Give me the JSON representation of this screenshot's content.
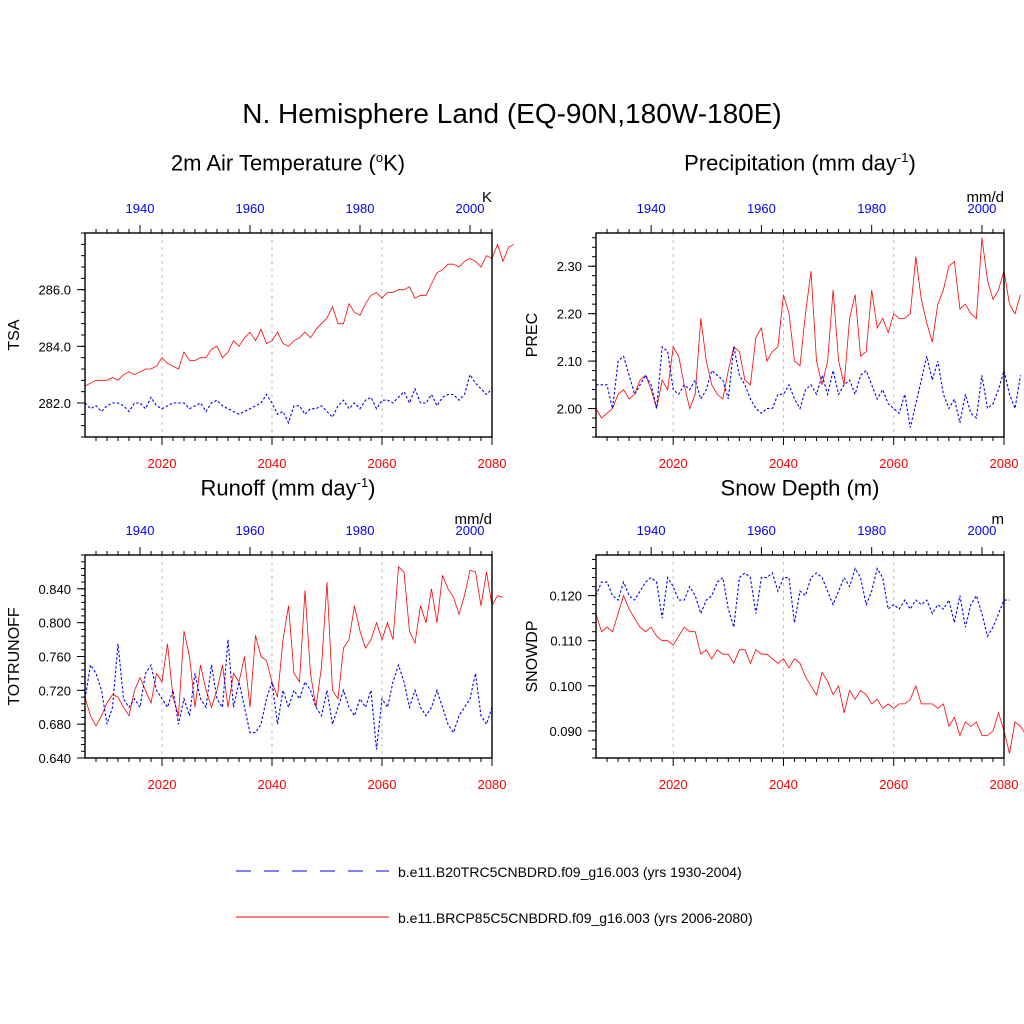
{
  "title": "N. Hemisphere Land (EQ-90N,180W-180E)",
  "legend": {
    "entries": [
      {
        "label": "b.e11.B20TRC5CNBDRD.f09_g16.003 (yrs 1930-2004)",
        "color": "#0000ff",
        "style": "dashed"
      },
      {
        "label": "b.e11.BRCP85C5CNBDRD.f09_g16.003 (yrs 2006-2080)",
        "color": "#ff0000",
        "style": "solid"
      }
    ]
  },
  "chart_data": [
    {
      "type": "line",
      "title_main": "2m Air Temperature (",
      "title_sup": "o",
      "title_end": "K)",
      "ylabel": "TSA",
      "units": "K",
      "ylim": [
        280.8,
        288.0
      ],
      "yticks": [
        282.0,
        284.0,
        286.0
      ],
      "ytick_labels": [
        "282.0",
        "284.0",
        "286.0"
      ],
      "x_bottom_ticks": [
        2020,
        2040,
        2060,
        2080
      ],
      "x_top_ticks": [
        1940,
        1960,
        1980,
        2000
      ],
      "series": [
        {
          "name": "b.e11.BRCP85C5CNBDRD.f09_g16.003",
          "years": "2006-2080",
          "values": [
            282.6,
            282.7,
            282.8,
            282.8,
            282.8,
            282.9,
            282.8,
            283.0,
            283.1,
            283.0,
            283.1,
            283.2,
            283.2,
            283.3,
            283.6,
            283.4,
            283.3,
            283.2,
            283.8,
            283.5,
            283.5,
            283.6,
            283.6,
            283.9,
            284.0,
            283.6,
            283.8,
            284.2,
            284.0,
            284.3,
            284.5,
            284.2,
            284.6,
            284.1,
            284.2,
            284.5,
            284.1,
            284.0,
            284.2,
            284.3,
            284.5,
            284.3,
            284.6,
            284.8,
            285.0,
            285.4,
            284.8,
            284.8,
            285.5,
            285.2,
            285.1,
            285.5,
            285.8,
            285.9,
            285.7,
            285.9,
            285.9,
            286.0,
            286.0,
            286.1,
            285.7,
            285.8,
            285.8,
            286.2,
            286.6,
            286.7,
            286.9,
            286.9,
            286.8,
            287.0,
            287.1,
            287.0,
            286.8,
            287.2,
            287.1,
            287.6,
            287.0,
            287.5,
            287.6
          ]
        },
        {
          "name": "b.e11.B20TRC5CNBDRD.f09_g16.003",
          "years": "1930-2004",
          "values": [
            282.0,
            281.8,
            281.9,
            281.7,
            281.9,
            282.0,
            282.0,
            281.9,
            281.7,
            282.0,
            282.0,
            281.8,
            282.2,
            281.9,
            281.8,
            281.9,
            282.0,
            282.0,
            282.0,
            281.8,
            281.9,
            282.0,
            281.7,
            282.0,
            282.1,
            281.9,
            281.8,
            281.7,
            281.6,
            281.7,
            281.8,
            281.9,
            282.0,
            282.3,
            282.0,
            281.6,
            281.7,
            281.3,
            281.9,
            281.9,
            281.6,
            281.8,
            281.8,
            281.9,
            281.7,
            281.5,
            281.9,
            282.1,
            281.8,
            282.0,
            281.8,
            282.1,
            282.2,
            281.8,
            282.1,
            282.1,
            282.0,
            282.2,
            282.4,
            282.0,
            282.5,
            282.0,
            282.0,
            282.3,
            281.9,
            282.2,
            282.3,
            282.3,
            282.1,
            282.3,
            283.0,
            282.7,
            282.5,
            282.3,
            282.5
          ]
        }
      ]
    },
    {
      "type": "line",
      "title_main": "Precipitation (mm day",
      "title_sup": "-1",
      "title_end": ")",
      "ylabel": "PREC",
      "units": "mm/d",
      "ylim": [
        1.94,
        2.37
      ],
      "yticks": [
        2.0,
        2.1,
        2.2,
        2.3
      ],
      "ytick_labels": [
        "2.00",
        "2.10",
        "2.20",
        "2.30"
      ],
      "x_bottom_ticks": [
        2020,
        2040,
        2060,
        2080
      ],
      "x_top_ticks": [
        1940,
        1960,
        1980,
        2000
      ],
      "series": [
        {
          "name": "b.e11.BRCP85C5CNBDRD.f09_g16.003",
          "years": "2006-2080",
          "values": [
            2.0,
            1.98,
            1.99,
            2.0,
            2.03,
            2.04,
            2.02,
            2.03,
            2.06,
            2.07,
            2.04,
            2.0,
            2.06,
            2.04,
            2.13,
            2.11,
            2.05,
            2.0,
            2.03,
            2.19,
            2.1,
            2.05,
            2.03,
            2.02,
            2.08,
            2.13,
            2.12,
            2.06,
            2.05,
            2.15,
            2.17,
            2.1,
            2.12,
            2.13,
            2.24,
            2.2,
            2.1,
            2.09,
            2.2,
            2.29,
            2.1,
            2.05,
            2.1,
            2.25,
            2.1,
            2.05,
            2.19,
            2.24,
            2.11,
            2.12,
            2.25,
            2.17,
            2.19,
            2.16,
            2.2,
            2.19,
            2.19,
            2.2,
            2.32,
            2.23,
            2.18,
            2.14,
            2.22,
            2.25,
            2.3,
            2.31,
            2.21,
            2.22,
            2.2,
            2.19,
            2.36,
            2.27,
            2.23,
            2.25,
            2.29,
            2.22,
            2.2,
            2.24
          ]
        },
        {
          "name": "b.e11.B20TRC5CNBDRD.f09_g16.003",
          "years": "1930-2004",
          "values": [
            2.05,
            2.05,
            2.05,
            2.0,
            2.1,
            2.11,
            2.07,
            2.03,
            2.05,
            2.07,
            2.05,
            2.0,
            2.13,
            2.12,
            2.04,
            2.03,
            2.05,
            2.04,
            2.06,
            2.02,
            2.04,
            2.08,
            2.07,
            2.06,
            2.02,
            2.13,
            2.07,
            2.05,
            2.02,
            2.0,
            1.99,
            2.0,
            2.0,
            2.03,
            2.03,
            2.05,
            2.02,
            2.0,
            2.04,
            2.05,
            2.03,
            2.07,
            2.03,
            2.08,
            2.03,
            2.05,
            2.06,
            2.03,
            2.07,
            2.08,
            2.05,
            2.02,
            2.04,
            2.01,
            2.0,
            1.99,
            2.03,
            1.96,
            2.01,
            2.06,
            2.11,
            2.06,
            2.1,
            2.03,
            2.0,
            2.02,
            1.97,
            2.03,
            1.99,
            1.98,
            2.07,
            2.0,
            2.01,
            2.04,
            2.08,
            2.03,
            2.0,
            2.07
          ]
        }
      ]
    },
    {
      "type": "line",
      "title_main": "Runoff (mm day",
      "title_sup": "-1",
      "title_end": ")",
      "ylabel": "TOTRUNOFF",
      "units": "mm/d",
      "ylim": [
        0.64,
        0.88
      ],
      "yticks": [
        0.64,
        0.68,
        0.72,
        0.76,
        0.8,
        0.84
      ],
      "ytick_labels": [
        "0.640",
        "0.680",
        "0.720",
        "0.760",
        "0.800",
        "0.840"
      ],
      "x_bottom_ticks": [
        2020,
        2040,
        2060,
        2080
      ],
      "x_top_ticks": [
        1940,
        1960,
        1980,
        2000
      ],
      "series": [
        {
          "name": "b.e11.BRCP85C5CNBDRD.f09_g16.003",
          "years": "2006-2080",
          "values": [
            0.712,
            0.69,
            0.678,
            0.69,
            0.705,
            0.715,
            0.712,
            0.7,
            0.69,
            0.72,
            0.735,
            0.72,
            0.705,
            0.74,
            0.73,
            0.775,
            0.712,
            0.69,
            0.79,
            0.76,
            0.7,
            0.75,
            0.72,
            0.7,
            0.72,
            0.75,
            0.7,
            0.74,
            0.73,
            0.76,
            0.7,
            0.785,
            0.76,
            0.755,
            0.73,
            0.712,
            0.78,
            0.82,
            0.74,
            0.73,
            0.838,
            0.74,
            0.7,
            0.748,
            0.848,
            0.72,
            0.71,
            0.77,
            0.78,
            0.82,
            0.79,
            0.77,
            0.78,
            0.8,
            0.78,
            0.8,
            0.78,
            0.866,
            0.86,
            0.79,
            0.776,
            0.82,
            0.8,
            0.84,
            0.8,
            0.856,
            0.84,
            0.83,
            0.81,
            0.832,
            0.862,
            0.86,
            0.82,
            0.86,
            0.82,
            0.832,
            0.83
          ]
        },
        {
          "name": "b.e11.B20TRC5CNBDRD.f09_g16.003",
          "years": "1930-2004",
          "values": [
            0.71,
            0.75,
            0.74,
            0.72,
            0.68,
            0.7,
            0.775,
            0.71,
            0.7,
            0.71,
            0.7,
            0.74,
            0.75,
            0.72,
            0.71,
            0.7,
            0.72,
            0.68,
            0.71,
            0.69,
            0.74,
            0.71,
            0.7,
            0.75,
            0.71,
            0.7,
            0.78,
            0.7,
            0.73,
            0.7,
            0.67,
            0.67,
            0.68,
            0.71,
            0.73,
            0.68,
            0.72,
            0.7,
            0.72,
            0.71,
            0.73,
            0.72,
            0.7,
            0.69,
            0.72,
            0.68,
            0.7,
            0.72,
            0.7,
            0.69,
            0.71,
            0.7,
            0.72,
            0.65,
            0.71,
            0.7,
            0.73,
            0.75,
            0.73,
            0.7,
            0.72,
            0.7,
            0.69,
            0.7,
            0.72,
            0.7,
            0.68,
            0.67,
            0.69,
            0.7,
            0.71,
            0.74,
            0.69,
            0.68,
            0.7
          ]
        }
      ]
    },
    {
      "type": "line",
      "title_main": "Snow Depth (m)",
      "title_sup": "",
      "title_end": "",
      "ylabel": "SNOWDP",
      "units": "m",
      "ylim": [
        0.084,
        0.129
      ],
      "yticks": [
        0.09,
        0.1,
        0.11,
        0.12
      ],
      "ytick_labels": [
        "0.090",
        "0.100",
        "0.110",
        "0.120"
      ],
      "x_bottom_ticks": [
        2020,
        2040,
        2060,
        2080
      ],
      "x_top_ticks": [
        1940,
        1960,
        1980,
        2000
      ],
      "series": [
        {
          "name": "b.e11.BRCP85C5CNBDRD.f09_g16.003",
          "years": "2006-2080",
          "values": [
            0.116,
            0.112,
            0.113,
            0.112,
            0.116,
            0.12,
            0.117,
            0.115,
            0.113,
            0.112,
            0.113,
            0.111,
            0.11,
            0.11,
            0.109,
            0.111,
            0.113,
            0.112,
            0.112,
            0.107,
            0.108,
            0.106,
            0.108,
            0.107,
            0.107,
            0.105,
            0.108,
            0.108,
            0.105,
            0.108,
            0.107,
            0.107,
            0.106,
            0.105,
            0.106,
            0.104,
            0.106,
            0.105,
            0.102,
            0.1,
            0.098,
            0.103,
            0.101,
            0.098,
            0.1,
            0.094,
            0.099,
            0.097,
            0.099,
            0.098,
            0.096,
            0.097,
            0.095,
            0.096,
            0.095,
            0.096,
            0.096,
            0.097,
            0.1,
            0.096,
            0.096,
            0.096,
            0.095,
            0.096,
            0.091,
            0.093,
            0.089,
            0.092,
            0.091,
            0.092,
            0.089,
            0.089,
            0.09,
            0.094,
            0.09,
            0.085,
            0.092,
            0.091,
            0.089
          ]
        },
        {
          "name": "b.e11.B20TRC5CNBDRD.f09_g16.003",
          "years": "1930-2004",
          "values": [
            0.12,
            0.123,
            0.123,
            0.12,
            0.119,
            0.123,
            0.12,
            0.119,
            0.121,
            0.123,
            0.124,
            0.123,
            0.115,
            0.124,
            0.122,
            0.119,
            0.119,
            0.122,
            0.12,
            0.116,
            0.119,
            0.12,
            0.123,
            0.124,
            0.117,
            0.113,
            0.124,
            0.125,
            0.124,
            0.116,
            0.124,
            0.124,
            0.125,
            0.121,
            0.124,
            0.124,
            0.114,
            0.121,
            0.12,
            0.124,
            0.125,
            0.124,
            0.121,
            0.118,
            0.121,
            0.124,
            0.122,
            0.126,
            0.124,
            0.118,
            0.121,
            0.126,
            0.124,
            0.117,
            0.118,
            0.117,
            0.119,
            0.117,
            0.119,
            0.118,
            0.119,
            0.116,
            0.118,
            0.117,
            0.119,
            0.114,
            0.12,
            0.113,
            0.118,
            0.12,
            0.116,
            0.111,
            0.113,
            0.116,
            0.119,
            0.119
          ]
        }
      ]
    }
  ]
}
